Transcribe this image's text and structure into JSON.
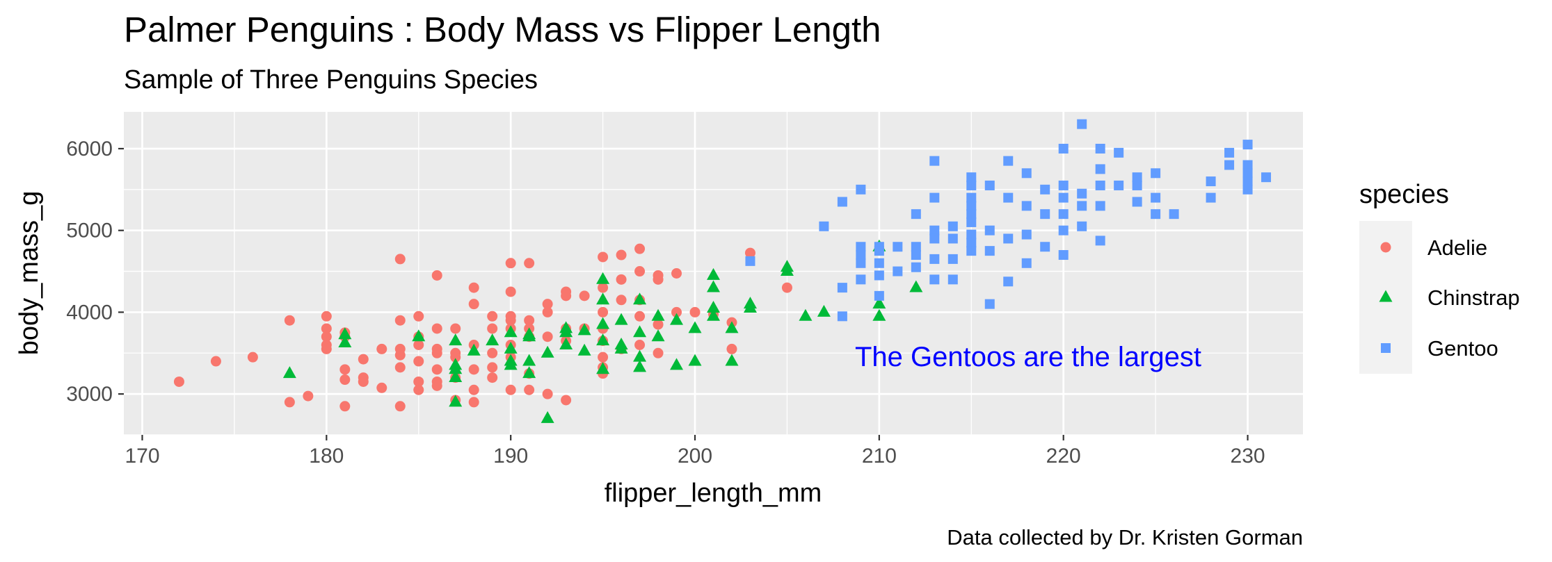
{
  "chart_data": {
    "type": "scatter",
    "title": "Palmer Penguins : Body Mass vs Flipper Length",
    "subtitle": "Sample of Three Penguins Species",
    "xlabel": "flipper_length_mm",
    "ylabel": "body_mass_g",
    "caption": "Data collected by Dr. Kristen Gorman",
    "annotation": "The Gentoos are the  largest",
    "xlim": [
      169,
      233
    ],
    "ylim": [
      2500,
      6450
    ],
    "x_ticks": [
      "170",
      "180",
      "190",
      "200",
      "210",
      "220",
      "230"
    ],
    "y_ticks": [
      "3000",
      "4000",
      "5000",
      "6000"
    ],
    "grid": true,
    "legend_position": "right",
    "legend_title": "species",
    "series": [
      {
        "name": "Adelie",
        "color": "#F8766D",
        "shape": "circle",
        "points": [
          [
            172,
            3150
          ],
          [
            174,
            3400
          ],
          [
            176,
            3450
          ],
          [
            178,
            3900
          ],
          [
            178,
            2900
          ],
          [
            179,
            2975
          ],
          [
            180,
            3950
          ],
          [
            180,
            3800
          ],
          [
            180,
            3700
          ],
          [
            180,
            3600
          ],
          [
            180,
            3550
          ],
          [
            181,
            3750
          ],
          [
            181,
            3700
          ],
          [
            181,
            3300
          ],
          [
            181,
            3175
          ],
          [
            181,
            2850
          ],
          [
            182,
            3200
          ],
          [
            182,
            3150
          ],
          [
            182,
            3425
          ],
          [
            183,
            3550
          ],
          [
            183,
            3075
          ],
          [
            184,
            4650
          ],
          [
            184,
            3900
          ],
          [
            184,
            3550
          ],
          [
            184,
            3475
          ],
          [
            184,
            3325
          ],
          [
            184,
            2850
          ],
          [
            185,
            3950
          ],
          [
            185,
            3700
          ],
          [
            185,
            3600
          ],
          [
            185,
            3400
          ],
          [
            185,
            3150
          ],
          [
            185,
            3050
          ],
          [
            186,
            4450
          ],
          [
            186,
            3800
          ],
          [
            186,
            3550
          ],
          [
            186,
            3500
          ],
          [
            186,
            3300
          ],
          [
            186,
            3150
          ],
          [
            186,
            3100
          ],
          [
            187,
            3800
          ],
          [
            187,
            3500
          ],
          [
            187,
            3450
          ],
          [
            187,
            3200
          ],
          [
            187,
            2925
          ],
          [
            188,
            4300
          ],
          [
            188,
            4100
          ],
          [
            188,
            3600
          ],
          [
            188,
            3300
          ],
          [
            188,
            3050
          ],
          [
            188,
            2900
          ],
          [
            189,
            3950
          ],
          [
            189,
            3800
          ],
          [
            189,
            3500
          ],
          [
            189,
            3325
          ],
          [
            189,
            3200
          ],
          [
            190,
            4600
          ],
          [
            190,
            4250
          ],
          [
            190,
            3950
          ],
          [
            190,
            3900
          ],
          [
            190,
            3800
          ],
          [
            190,
            3600
          ],
          [
            190,
            3450
          ],
          [
            190,
            3050
          ],
          [
            191,
            4600
          ],
          [
            191,
            3900
          ],
          [
            191,
            3800
          ],
          [
            191,
            3700
          ],
          [
            191,
            3250
          ],
          [
            191,
            3050
          ],
          [
            192,
            4100
          ],
          [
            192,
            4000
          ],
          [
            192,
            3700
          ],
          [
            192,
            3000
          ],
          [
            193,
            4250
          ],
          [
            193,
            4200
          ],
          [
            193,
            3800
          ],
          [
            193,
            3650
          ],
          [
            193,
            2925
          ],
          [
            194,
            4200
          ],
          [
            194,
            3800
          ],
          [
            195,
            4675
          ],
          [
            195,
            4300
          ],
          [
            195,
            4000
          ],
          [
            195,
            3800
          ],
          [
            195,
            3650
          ],
          [
            195,
            3450
          ],
          [
            195,
            3325
          ],
          [
            195,
            3250
          ],
          [
            196,
            4700
          ],
          [
            196,
            4400
          ],
          [
            196,
            4150
          ],
          [
            196,
            3550
          ],
          [
            197,
            4775
          ],
          [
            197,
            4500
          ],
          [
            197,
            4150
          ],
          [
            197,
            3950
          ],
          [
            197,
            3600
          ],
          [
            198,
            4450
          ],
          [
            198,
            4400
          ],
          [
            198,
            3500
          ],
          [
            198,
            3850
          ],
          [
            199,
            4475
          ],
          [
            199,
            4000
          ],
          [
            200,
            4000
          ],
          [
            201,
            3975
          ],
          [
            202,
            3875
          ],
          [
            202,
            3550
          ],
          [
            203,
            4725
          ],
          [
            205,
            4300
          ]
        ]
      },
      {
        "name": "Chinstrap",
        "color": "#00BA38",
        "shape": "triangle",
        "points": [
          [
            178,
            3250
          ],
          [
            181,
            3725
          ],
          [
            181,
            3625
          ],
          [
            185,
            3700
          ],
          [
            187,
            3650
          ],
          [
            187,
            3350
          ],
          [
            187,
            3300
          ],
          [
            187,
            3200
          ],
          [
            187,
            2900
          ],
          [
            188,
            3525
          ],
          [
            189,
            3650
          ],
          [
            190,
            3750
          ],
          [
            190,
            3550
          ],
          [
            190,
            3400
          ],
          [
            190,
            3350
          ],
          [
            191,
            3725
          ],
          [
            191,
            3700
          ],
          [
            191,
            3400
          ],
          [
            191,
            3250
          ],
          [
            192,
            3500
          ],
          [
            192,
            2700
          ],
          [
            193,
            3800
          ],
          [
            193,
            3750
          ],
          [
            193,
            3600
          ],
          [
            194,
            3775
          ],
          [
            194,
            3525
          ],
          [
            195,
            4400
          ],
          [
            195,
            4150
          ],
          [
            195,
            3850
          ],
          [
            195,
            3650
          ],
          [
            195,
            3300
          ],
          [
            196,
            3900
          ],
          [
            196,
            3550
          ],
          [
            196,
            3600
          ],
          [
            197,
            4150
          ],
          [
            197,
            3750
          ],
          [
            197,
            3450
          ],
          [
            197,
            3325
          ],
          [
            198,
            3950
          ],
          [
            198,
            3700
          ],
          [
            199,
            3900
          ],
          [
            199,
            3350
          ],
          [
            200,
            3800
          ],
          [
            200,
            3400
          ],
          [
            201,
            4450
          ],
          [
            201,
            4300
          ],
          [
            201,
            4050
          ],
          [
            201,
            3950
          ],
          [
            202,
            3800
          ],
          [
            202,
            3400
          ],
          [
            203,
            4100
          ],
          [
            203,
            4050
          ],
          [
            205,
            4550
          ],
          [
            205,
            4500
          ],
          [
            206,
            3950
          ],
          [
            207,
            4000
          ],
          [
            210,
            4800
          ],
          [
            210,
            4100
          ],
          [
            210,
            3950
          ],
          [
            212,
            4300
          ]
        ]
      },
      {
        "name": "Gentoo",
        "color": "#619CFF",
        "shape": "square",
        "points": [
          [
            203,
            4625
          ],
          [
            207,
            5050
          ],
          [
            208,
            5350
          ],
          [
            208,
            4300
          ],
          [
            208,
            3950
          ],
          [
            209,
            5500
          ],
          [
            209,
            4800
          ],
          [
            209,
            4700
          ],
          [
            209,
            4600
          ],
          [
            209,
            4400
          ],
          [
            210,
            4800
          ],
          [
            210,
            4750
          ],
          [
            210,
            4600
          ],
          [
            210,
            4450
          ],
          [
            210,
            4200
          ],
          [
            211,
            4800
          ],
          [
            211,
            4500
          ],
          [
            212,
            5200
          ],
          [
            212,
            4800
          ],
          [
            212,
            4700
          ],
          [
            212,
            4550
          ],
          [
            213,
            5850
          ],
          [
            213,
            5400
          ],
          [
            213,
            5000
          ],
          [
            213,
            4900
          ],
          [
            213,
            4650
          ],
          [
            213,
            4400
          ],
          [
            214,
            5050
          ],
          [
            214,
            4900
          ],
          [
            214,
            4650
          ],
          [
            214,
            4400
          ],
          [
            215,
            5650
          ],
          [
            215,
            5550
          ],
          [
            215,
            5400
          ],
          [
            215,
            5300
          ],
          [
            215,
            5200
          ],
          [
            215,
            5100
          ],
          [
            215,
            4950
          ],
          [
            215,
            4850
          ],
          [
            215,
            4750
          ],
          [
            216,
            5550
          ],
          [
            216,
            5000
          ],
          [
            216,
            4750
          ],
          [
            216,
            4100
          ],
          [
            217,
            5850
          ],
          [
            217,
            5400
          ],
          [
            217,
            4900
          ],
          [
            217,
            4375
          ],
          [
            218,
            5700
          ],
          [
            218,
            5300
          ],
          [
            218,
            4950
          ],
          [
            218,
            4600
          ],
          [
            219,
            5500
          ],
          [
            219,
            5200
          ],
          [
            219,
            4800
          ],
          [
            220,
            6000
          ],
          [
            220,
            5550
          ],
          [
            220,
            5400
          ],
          [
            220,
            5200
          ],
          [
            220,
            5000
          ],
          [
            220,
            4700
          ],
          [
            221,
            6300
          ],
          [
            221,
            5450
          ],
          [
            221,
            5300
          ],
          [
            221,
            5050
          ],
          [
            222,
            6000
          ],
          [
            222,
            5750
          ],
          [
            222,
            5550
          ],
          [
            222,
            5300
          ],
          [
            222,
            4875
          ],
          [
            223,
            5950
          ],
          [
            223,
            5550
          ],
          [
            224,
            5650
          ],
          [
            224,
            5550
          ],
          [
            224,
            5350
          ],
          [
            225,
            5700
          ],
          [
            225,
            5400
          ],
          [
            225,
            5200
          ],
          [
            226,
            5200
          ],
          [
            228,
            5600
          ],
          [
            228,
            5400
          ],
          [
            229,
            5950
          ],
          [
            229,
            5800
          ],
          [
            230,
            6050
          ],
          [
            230,
            5800
          ],
          [
            230,
            5700
          ],
          [
            230,
            5600
          ],
          [
            230,
            5500
          ],
          [
            231,
            5650
          ]
        ]
      }
    ]
  }
}
